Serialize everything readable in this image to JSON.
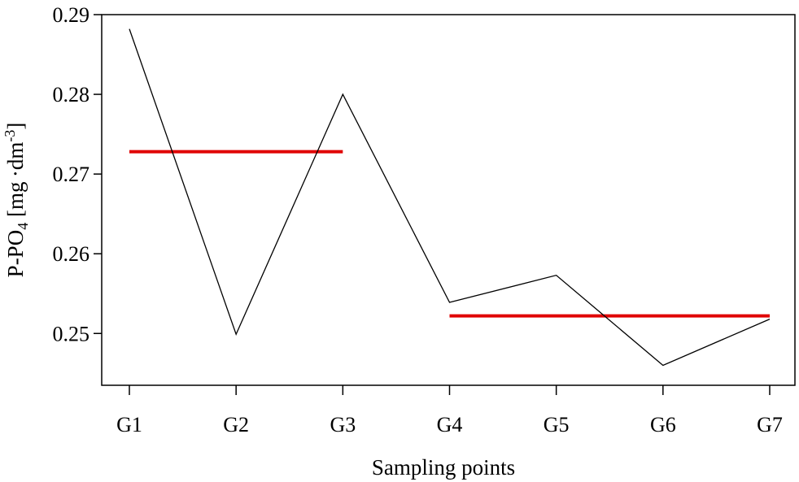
{
  "chart_data": {
    "type": "line",
    "xlabel": "Sampling points",
    "ylabel": {
      "main": "P-PO",
      "sub": "4",
      "unit": " [mg ·dm",
      "sup": "-3",
      "close": "]"
    },
    "categories": [
      "G1",
      "G2",
      "G3",
      "G4",
      "G5",
      "G6",
      "G7"
    ],
    "series": [
      {
        "values": [
          0.2882,
          0.2499,
          0.28,
          0.2539,
          0.2573,
          0.246,
          0.2518
        ],
        "color": "#000000"
      }
    ],
    "reference_lines": [
      {
        "from": "G1",
        "to": "G3",
        "value": 0.2728,
        "color": "#e00000"
      },
      {
        "from": "G4",
        "to": "G7",
        "value": 0.2522,
        "color": "#e00000"
      }
    ],
    "yticks": [
      "0.25",
      "0.26",
      "0.27",
      "0.28",
      "0.29"
    ],
    "ylim": [
      0.2435,
      0.29
    ],
    "grid": false
  }
}
